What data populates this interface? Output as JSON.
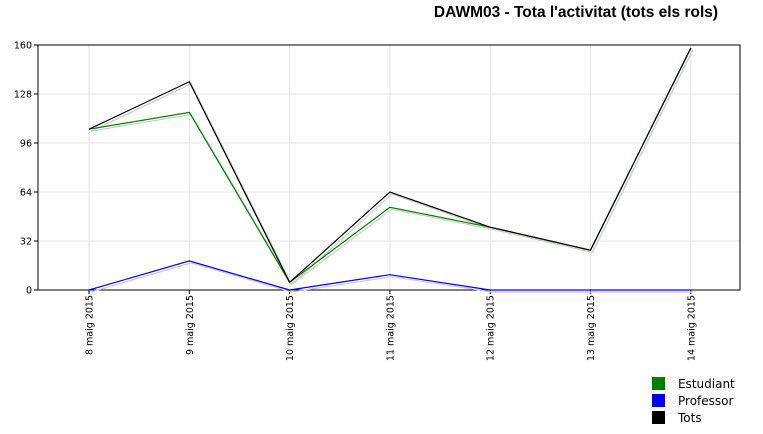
{
  "chart_data": {
    "type": "line",
    "title": "DAWM03 - Tota l'activitat (tots els rols)",
    "categories": [
      "8 maig 2015",
      "9 maig 2015",
      "10 maig 2015",
      "11 maig 2015",
      "12 maig 2015",
      "13 maig 2015",
      "14 maig 2015"
    ],
    "yticks": [
      "0",
      "32",
      "64",
      "96",
      "128",
      "160"
    ],
    "ylim": [
      0,
      160
    ],
    "grid": true,
    "legend_position": "bottom-right",
    "series": [
      {
        "name": "Estudiant",
        "color": "#008000",
        "values": [
          105,
          116,
          5,
          54,
          41,
          26,
          158
        ]
      },
      {
        "name": "Professor",
        "color": "#0000ff",
        "values": [
          0,
          19,
          0,
          10,
          0,
          0,
          0
        ]
      },
      {
        "name": "Tots",
        "color": "#000000",
        "values": [
          105,
          136,
          5,
          64,
          41,
          26,
          158
        ]
      }
    ]
  }
}
